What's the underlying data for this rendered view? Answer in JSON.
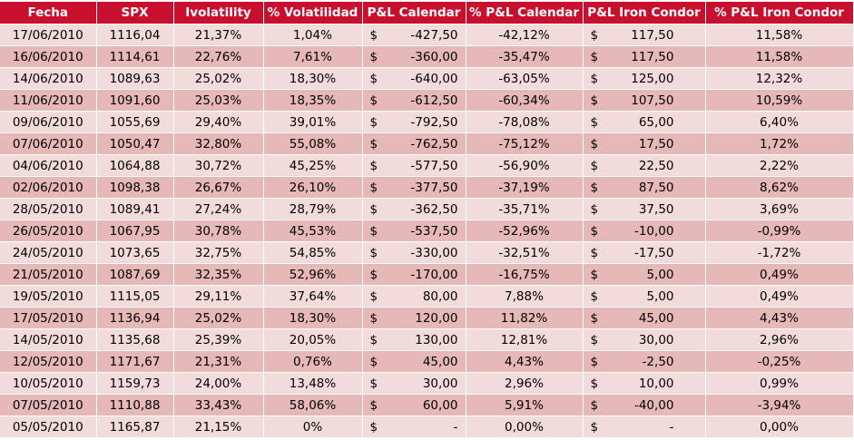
{
  "colors": {
    "header_bg": "#c8102e",
    "header_text": "#ffffff",
    "row_light": "#f2dcdb",
    "row_dark": "#e6b8b7"
  },
  "headers": {
    "fecha": "Fecha",
    "spx": "SPX",
    "ivol": "Ivolatility",
    "pvol": "% Volatilidad",
    "plcal": "P&L Calendar",
    "ppcal": "% P&L Calendar",
    "plic": "P&L Iron Condor",
    "ppic": "% P&L Iron Condor"
  },
  "currency_symbol": "$",
  "rows": [
    {
      "fecha": "17/06/2010",
      "spx": "1116,04",
      "ivol": "21,37%",
      "pvol": "1,04%",
      "plcal": "-427,50",
      "ppcal": "-42,12%",
      "plic": "117,50",
      "ppic": "11,58%"
    },
    {
      "fecha": "16/06/2010",
      "spx": "1114,61",
      "ivol": "22,76%",
      "pvol": "7,61%",
      "plcal": "-360,00",
      "ppcal": "-35,47%",
      "plic": "117,50",
      "ppic": "11,58%"
    },
    {
      "fecha": "14/06/2010",
      "spx": "1089,63",
      "ivol": "25,02%",
      "pvol": "18,30%",
      "plcal": "-640,00",
      "ppcal": "-63,05%",
      "plic": "125,00",
      "ppic": "12,32%"
    },
    {
      "fecha": "11/06/2010",
      "spx": "1091,60",
      "ivol": "25,03%",
      "pvol": "18,35%",
      "plcal": "-612,50",
      "ppcal": "-60,34%",
      "plic": "107,50",
      "ppic": "10,59%"
    },
    {
      "fecha": "09/06/2010",
      "spx": "1055,69",
      "ivol": "29,40%",
      "pvol": "39,01%",
      "plcal": "-792,50",
      "ppcal": "-78,08%",
      "plic": "65,00",
      "ppic": "6,40%"
    },
    {
      "fecha": "07/06/2010",
      "spx": "1050,47",
      "ivol": "32,80%",
      "pvol": "55,08%",
      "plcal": "-762,50",
      "ppcal": "-75,12%",
      "plic": "17,50",
      "ppic": "1,72%"
    },
    {
      "fecha": "04/06/2010",
      "spx": "1064,88",
      "ivol": "30,72%",
      "pvol": "45,25%",
      "plcal": "-577,50",
      "ppcal": "-56,90%",
      "plic": "22,50",
      "ppic": "2,22%"
    },
    {
      "fecha": "02/06/2010",
      "spx": "1098,38",
      "ivol": "26,67%",
      "pvol": "26,10%",
      "plcal": "-377,50",
      "ppcal": "-37,19%",
      "plic": "87,50",
      "ppic": "8,62%"
    },
    {
      "fecha": "28/05/2010",
      "spx": "1089,41",
      "ivol": "27,24%",
      "pvol": "28,79%",
      "plcal": "-362,50",
      "ppcal": "-35,71%",
      "plic": "37,50",
      "ppic": "3,69%"
    },
    {
      "fecha": "26/05/2010",
      "spx": "1067,95",
      "ivol": "30,78%",
      "pvol": "45,53%",
      "plcal": "-537,50",
      "ppcal": "-52,96%",
      "plic": "-10,00",
      "ppic": "-0,99%"
    },
    {
      "fecha": "24/05/2010",
      "spx": "1073,65",
      "ivol": "32,75%",
      "pvol": "54,85%",
      "plcal": "-330,00",
      "ppcal": "-32,51%",
      "plic": "-17,50",
      "ppic": "-1,72%"
    },
    {
      "fecha": "21/05/2010",
      "spx": "1087,69",
      "ivol": "32,35%",
      "pvol": "52,96%",
      "plcal": "-170,00",
      "ppcal": "-16,75%",
      "plic": "5,00",
      "ppic": "0,49%"
    },
    {
      "fecha": "19/05/2010",
      "spx": "1115,05",
      "ivol": "29,11%",
      "pvol": "37,64%",
      "plcal": "80,00",
      "ppcal": "7,88%",
      "plic": "5,00",
      "ppic": "0,49%"
    },
    {
      "fecha": "17/05/2010",
      "spx": "1136,94",
      "ivol": "25,02%",
      "pvol": "18,30%",
      "plcal": "120,00",
      "ppcal": "11,82%",
      "plic": "45,00",
      "ppic": "4,43%"
    },
    {
      "fecha": "14/05/2010",
      "spx": "1135,68",
      "ivol": "25,39%",
      "pvol": "20,05%",
      "plcal": "130,00",
      "ppcal": "12,81%",
      "plic": "30,00",
      "ppic": "2,96%"
    },
    {
      "fecha": "12/05/2010",
      "spx": "1171,67",
      "ivol": "21,31%",
      "pvol": "0,76%",
      "plcal": "45,00",
      "ppcal": "4,43%",
      "plic": "-2,50",
      "ppic": "-0,25%"
    },
    {
      "fecha": "10/05/2010",
      "spx": "1159,73",
      "ivol": "24,00%",
      "pvol": "13,48%",
      "plcal": "30,00",
      "ppcal": "2,96%",
      "plic": "10,00",
      "ppic": "0,99%"
    },
    {
      "fecha": "07/05/2010",
      "spx": "1110,88",
      "ivol": "33,43%",
      "pvol": "58,06%",
      "plcal": "60,00",
      "ppcal": "5,91%",
      "plic": "-40,00",
      "ppic": "-3,94%"
    },
    {
      "fecha": "05/05/2010",
      "spx": "1165,87",
      "ivol": "21,15%",
      "pvol": "0%",
      "plcal": "-",
      "ppcal": "0,00%",
      "plic": "-",
      "ppic": "0,00%"
    }
  ]
}
